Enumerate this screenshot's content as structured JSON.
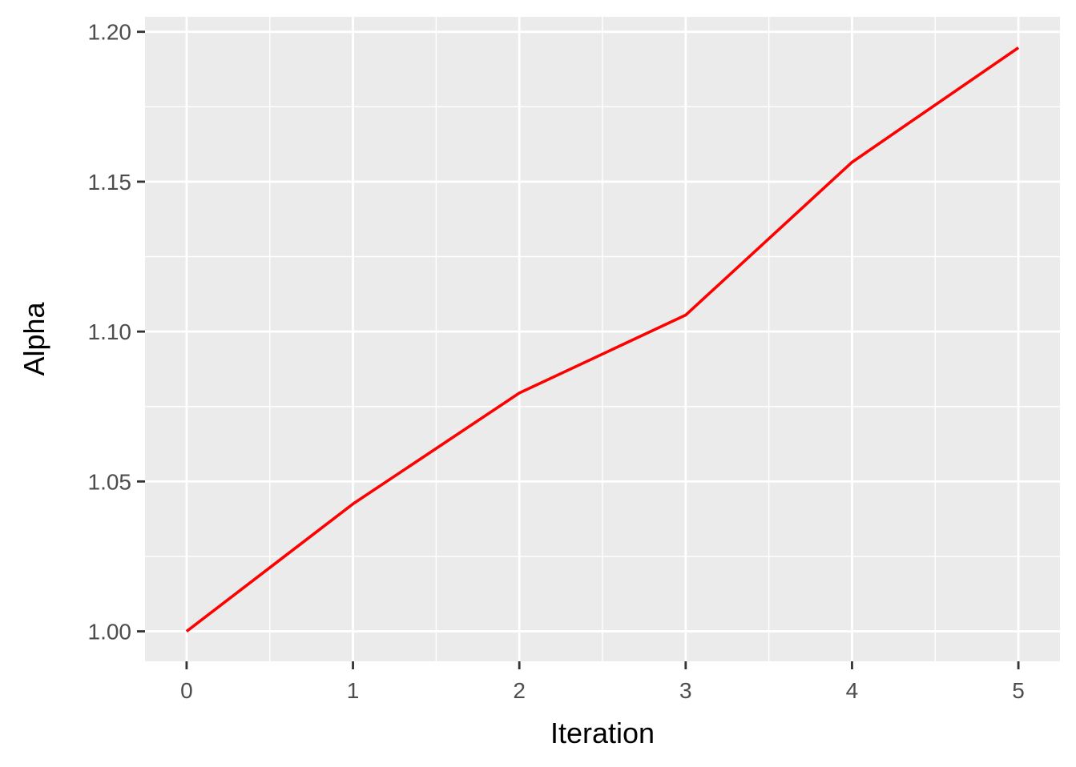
{
  "chart_data": {
    "type": "line",
    "title": "",
    "xlabel": "Iteration",
    "ylabel": "Alpha",
    "x": [
      0,
      1,
      2,
      3,
      4,
      5
    ],
    "series": [
      {
        "values": [
          1.0,
          1.0425,
          1.0795,
          1.1055,
          1.1565,
          1.1947
        ]
      }
    ],
    "xlim": [
      -0.25,
      5.25
    ],
    "ylim": [
      0.99,
      1.205
    ],
    "x_ticks": [
      0,
      1,
      2,
      3,
      4,
      5
    ],
    "x_tick_labels": [
      "0",
      "1",
      "2",
      "3",
      "4",
      "5"
    ],
    "y_ticks": [
      1.0,
      1.05,
      1.1,
      1.15,
      1.2
    ],
    "y_tick_labels": [
      "1.00",
      "1.05",
      "1.10",
      "1.15",
      "1.20"
    ],
    "grid": true,
    "colors": {
      "panel_background": "#EBEBEB",
      "grid": "#FFFFFF",
      "line": "#FF0000",
      "tick_mark": "#333333"
    }
  }
}
